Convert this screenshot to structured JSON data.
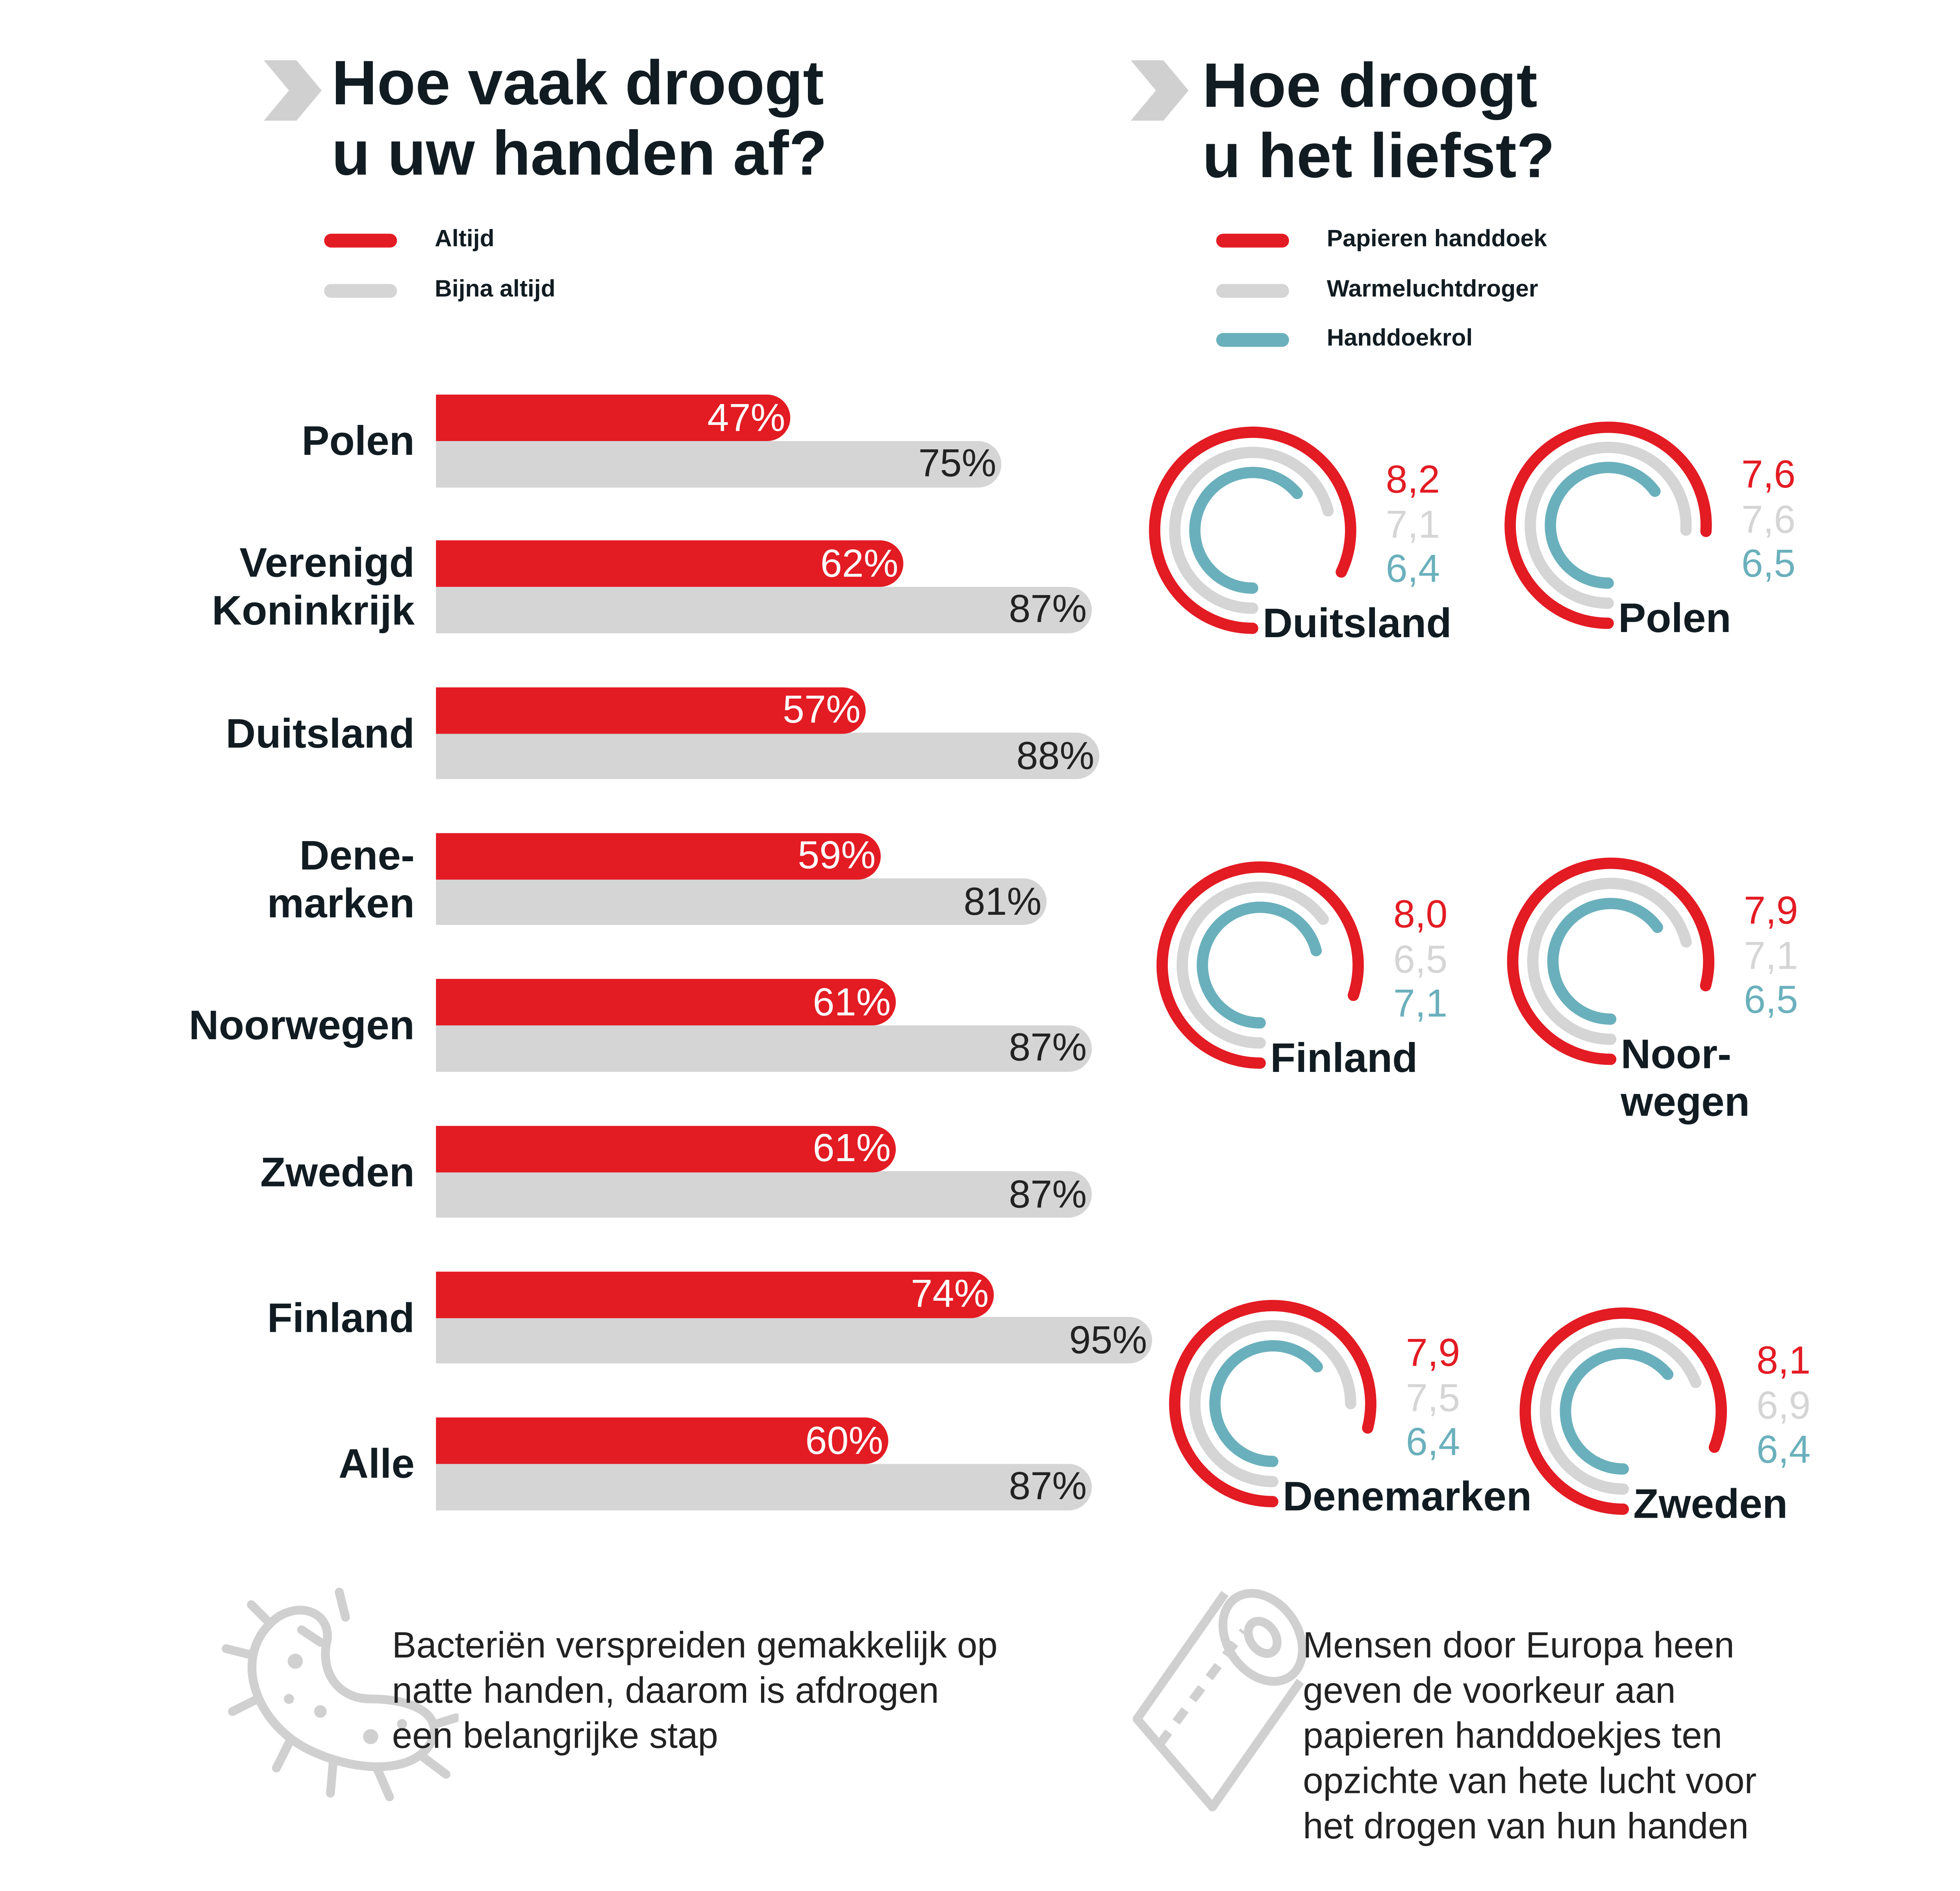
{
  "colors": {
    "red": "#e31b23",
    "gray": "#d5d5d5",
    "teal": "#6ab0bc",
    "text": "#111c22"
  },
  "chart_data": [
    {
      "type": "bar",
      "title": "Hoe vaak droogt\nu uw handen af?",
      "categories": [
        "Polen",
        "Verenigd\nKoninkrijk",
        "Duitsland",
        "Dene-\nmarken",
        "Noorwegen",
        "Zweden",
        "Finland",
        "Alle"
      ],
      "series": [
        {
          "name": "Altijd",
          "color": "#e31b23",
          "values": [
            47,
            62,
            57,
            59,
            61,
            61,
            74,
            60
          ],
          "labels": [
            "47%",
            "62%",
            "57%",
            "59%",
            "61%",
            "61%",
            "74%",
            "60%"
          ]
        },
        {
          "name": "Bijna altijd",
          "color": "#d5d5d5",
          "values": [
            75,
            87,
            88,
            81,
            87,
            87,
            95,
            87
          ],
          "labels": [
            "75%",
            "87%",
            "88%",
            "81%",
            "87%",
            "87%",
            "95%",
            "87%"
          ]
        }
      ],
      "orientation": "horizontal",
      "legend": "top-left"
    },
    {
      "type": "radial-gauge",
      "title": "Hoe droogt\nu het liefst?",
      "scale_max": 10,
      "series_names": [
        "Papieren handdoek",
        "Warmeluchtdroger",
        "Handdoekrol"
      ],
      "series_colors": [
        "#e31b23",
        "#d5d5d5",
        "#6ab0bc"
      ],
      "countries": [
        {
          "name": "Duitsland",
          "values": [
            8.2,
            7.1,
            6.4
          ],
          "labels": [
            "8,2",
            "7,1",
            "6,4"
          ]
        },
        {
          "name": "Polen",
          "values": [
            7.6,
            7.6,
            6.5
          ],
          "labels": [
            "7,6",
            "7,6",
            "6,5"
          ]
        },
        {
          "name": "Finland",
          "values": [
            8.0,
            6.5,
            7.1
          ],
          "labels": [
            "8,0",
            "6,5",
            "7,1"
          ]
        },
        {
          "name": "Noor-\nwegen",
          "values": [
            7.9,
            7.1,
            6.5
          ],
          "labels": [
            "7,9",
            "7,1",
            "6,5"
          ]
        },
        {
          "name": "Denemarken",
          "values": [
            7.9,
            7.5,
            6.4
          ],
          "labels": [
            "7,9",
            "7,5",
            "6,4"
          ]
        },
        {
          "name": "Zweden",
          "values": [
            8.1,
            6.9,
            6.4
          ],
          "labels": [
            "8,1",
            "6,9",
            "6,4"
          ]
        }
      ],
      "legend": "top-left"
    }
  ],
  "footer": {
    "left_text": "Bacteriën verspreiden gemakkelijk op\nnatte handen, daarom is afdrogen\neen belangrijke stap",
    "right_text": "Mensen door Europa heen\ngeven de voorkeur aan\npapieren handdoekjes ten\nopzichte van hete lucht voor\nhet drogen van hun handen",
    "left_icon": "bacterium-icon",
    "right_icon": "paper-roll-icon"
  }
}
